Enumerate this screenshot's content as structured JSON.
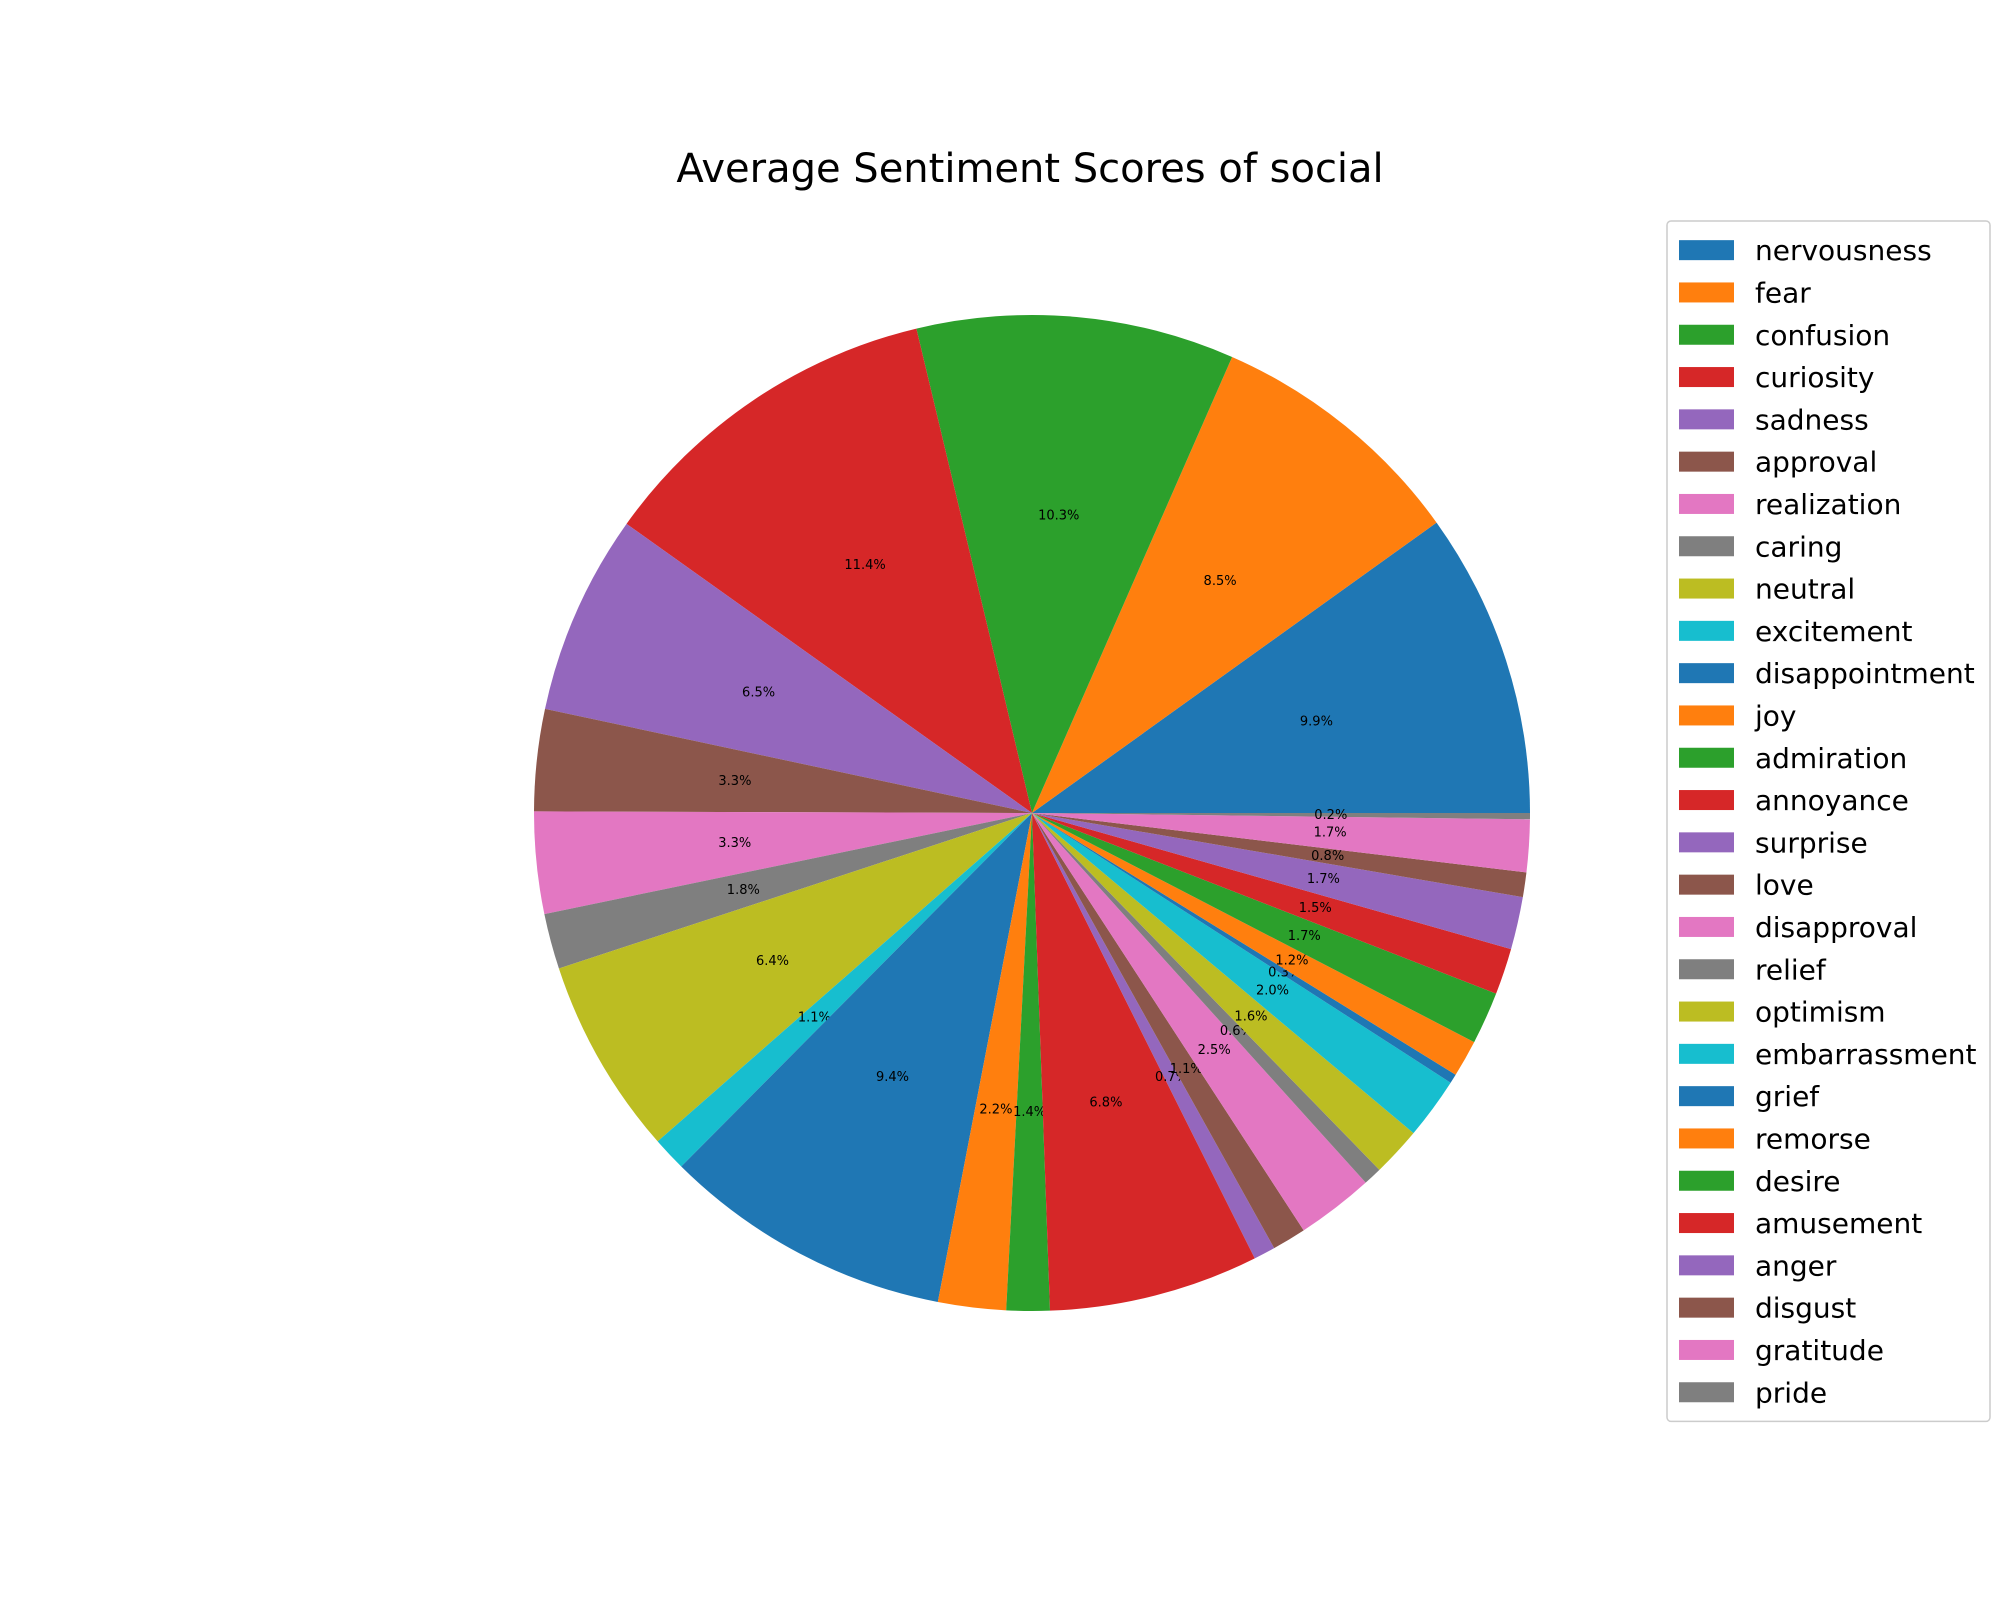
{
  "chart_data": {
    "type": "pie",
    "title": "Average Sentiment Scores of social",
    "start_angle_deg": 0,
    "direction": "counterclockwise",
    "legend_position": "right",
    "slices": [
      {
        "label": "nervousness",
        "value": 9.9,
        "display": "9.9%",
        "color": "#1f77b4"
      },
      {
        "label": "fear",
        "value": 8.5,
        "display": "8.5%",
        "color": "#ff7f0e"
      },
      {
        "label": "confusion",
        "value": 10.3,
        "display": "10.3%",
        "color": "#2ca02c"
      },
      {
        "label": "curiosity",
        "value": 11.4,
        "display": "11.4%",
        "color": "#d62728"
      },
      {
        "label": "sadness",
        "value": 6.5,
        "display": "6.5%",
        "color": "#9467bd"
      },
      {
        "label": "approval",
        "value": 3.3,
        "display": "3.3%",
        "color": "#8c564b"
      },
      {
        "label": "realization",
        "value": 3.3,
        "display": "3.3%",
        "color": "#e377c2"
      },
      {
        "label": "caring",
        "value": 1.8,
        "display": "1.8%",
        "color": "#7f7f7f"
      },
      {
        "label": "neutral",
        "value": 6.4,
        "display": "6.4%",
        "color": "#bcbd22"
      },
      {
        "label": "excitement",
        "value": 1.1,
        "display": "1.1%",
        "color": "#17becf"
      },
      {
        "label": "disappointment",
        "value": 9.4,
        "display": "9.4%",
        "color": "#1f77b4"
      },
      {
        "label": "joy",
        "value": 2.2,
        "display": "2.2%",
        "color": "#ff7f0e"
      },
      {
        "label": "admiration",
        "value": 1.4,
        "display": "1.4%",
        "color": "#2ca02c"
      },
      {
        "label": "annoyance",
        "value": 6.8,
        "display": "6.8%",
        "color": "#d62728"
      },
      {
        "label": "surprise",
        "value": 0.7,
        "display": "0.7%",
        "color": "#9467bd"
      },
      {
        "label": "love",
        "value": 1.1,
        "display": "1.1%",
        "color": "#8c564b"
      },
      {
        "label": "disapproval",
        "value": 2.5,
        "display": "2.5%",
        "color": "#e377c2"
      },
      {
        "label": "relief",
        "value": 0.6,
        "display": "0.6%",
        "color": "#7f7f7f"
      },
      {
        "label": "optimism",
        "value": 1.6,
        "display": "1.6%",
        "color": "#bcbd22"
      },
      {
        "label": "embarrassment",
        "value": 2.0,
        "display": "2.0%",
        "color": "#17becf"
      },
      {
        "label": "grief",
        "value": 0.3,
        "display": "0.3%",
        "color": "#1f77b4"
      },
      {
        "label": "remorse",
        "value": 1.2,
        "display": "1.2%",
        "color": "#ff7f0e"
      },
      {
        "label": "desire",
        "value": 1.7,
        "display": "1.7%",
        "color": "#2ca02c"
      },
      {
        "label": "amusement",
        "value": 1.5,
        "display": "1.5%",
        "color": "#d62728"
      },
      {
        "label": "anger",
        "value": 1.7,
        "display": "1.7%",
        "color": "#9467bd"
      },
      {
        "label": "disgust",
        "value": 0.8,
        "display": "0.8%",
        "color": "#8c564b"
      },
      {
        "label": "gratitude",
        "value": 1.7,
        "display": "1.7%",
        "color": "#e377c2"
      },
      {
        "label": "pride",
        "value": 0.2,
        "display": "0.2%",
        "color": "#7f7f7f"
      }
    ]
  }
}
